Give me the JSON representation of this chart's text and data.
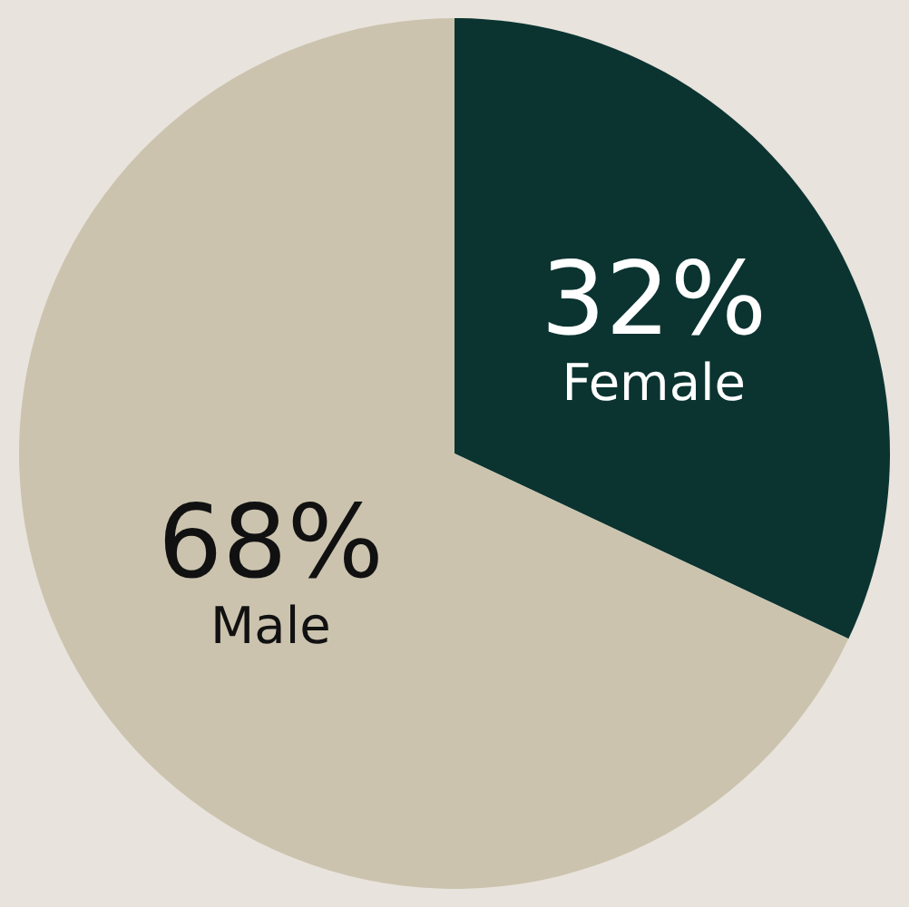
{
  "chart_data": {
    "type": "pie",
    "categories": [
      "Female",
      "Male"
    ],
    "values": [
      32,
      68
    ],
    "value_labels": [
      "32%",
      "68%"
    ],
    "colors": [
      "#0b3431",
      "#cbc3ae"
    ],
    "legend": false
  }
}
